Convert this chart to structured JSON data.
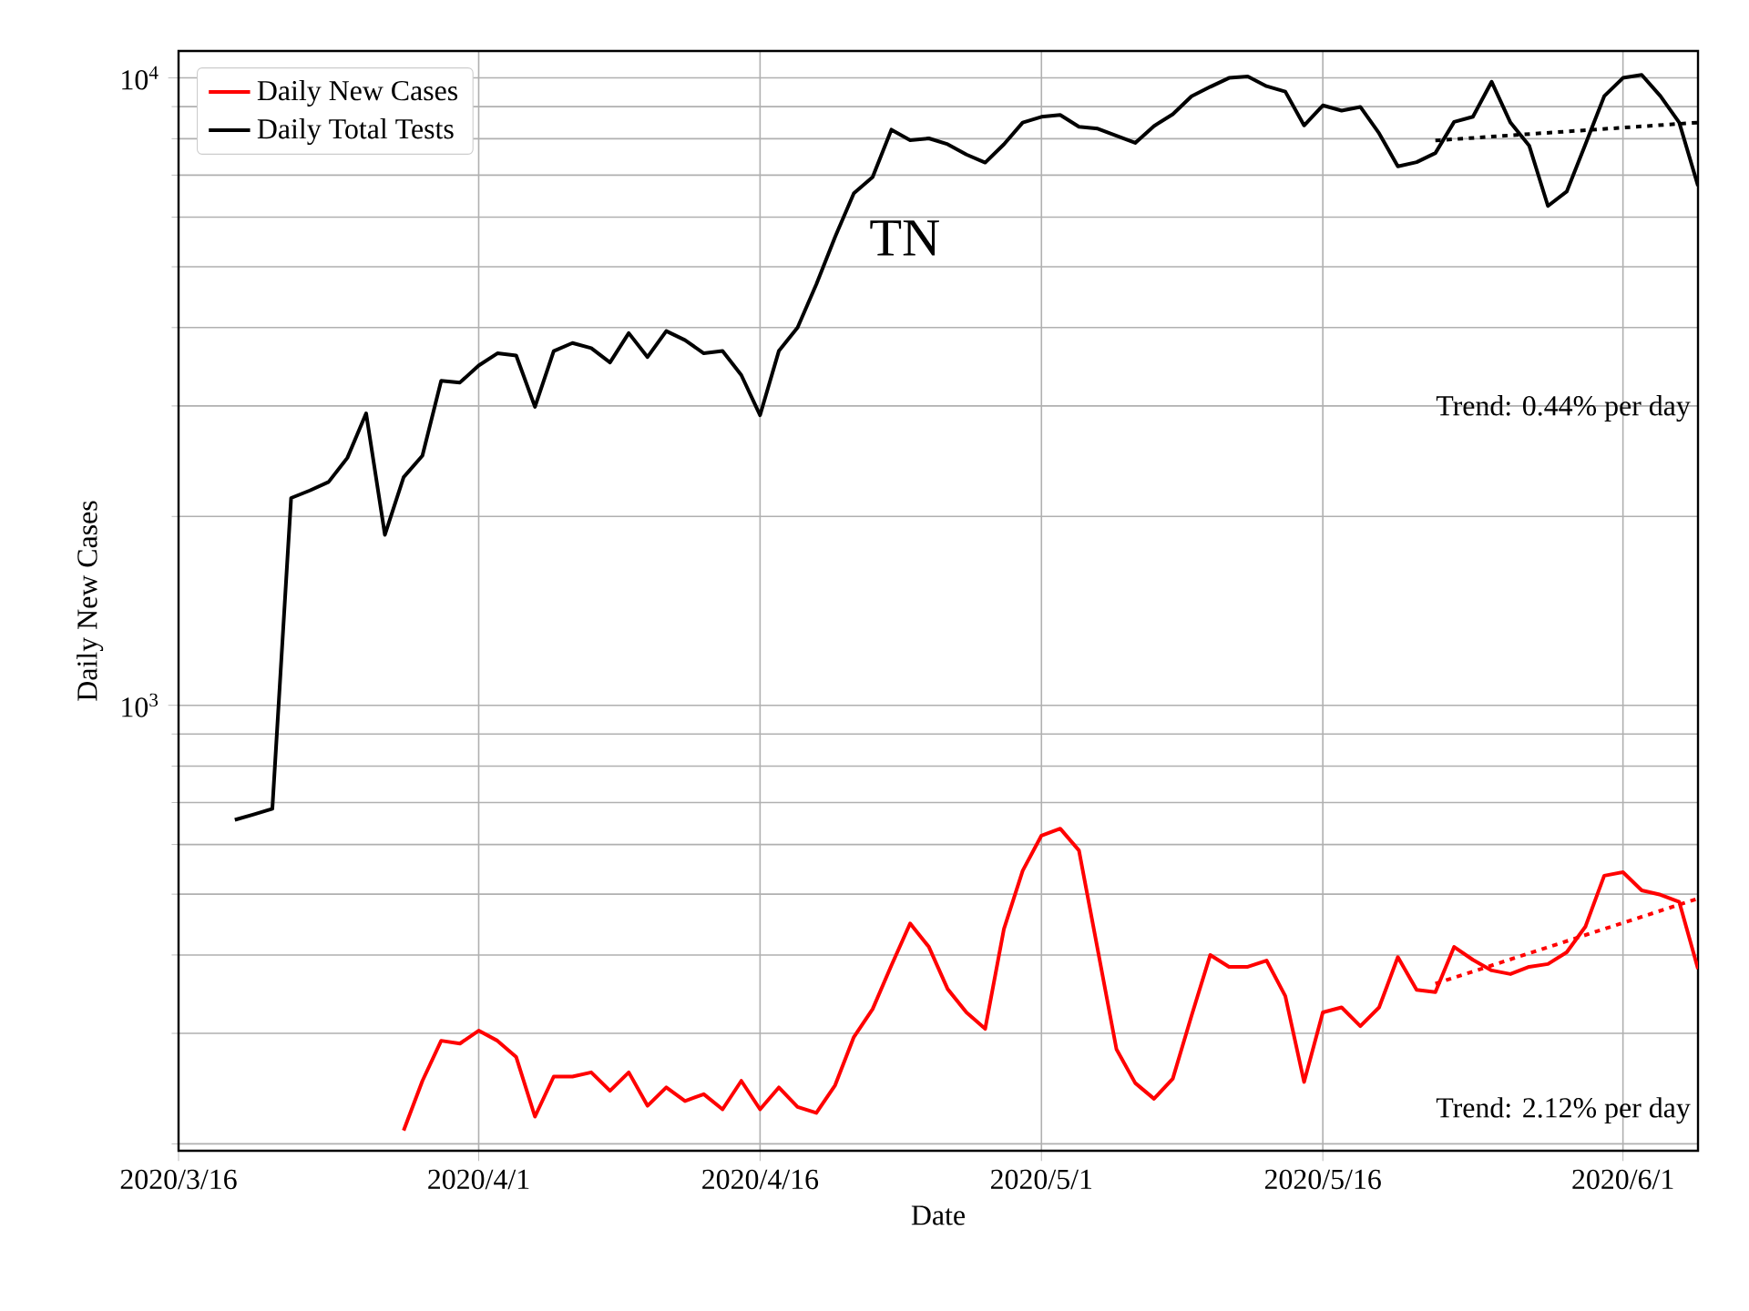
{
  "chart_data": {
    "type": "line",
    "xlabel": "Date",
    "ylabel": "Daily New Cases",
    "annotations": [
      "TN",
      "Trend: 0.44% per day",
      "Trend: 2.12% per day"
    ],
    "x": [
      "2020-03-19",
      "2020-03-20",
      "2020-03-21",
      "2020-03-22",
      "2020-03-23",
      "2020-03-24",
      "2020-03-25",
      "2020-03-26",
      "2020-03-27",
      "2020-03-28",
      "2020-03-29",
      "2020-03-30",
      "2020-03-31",
      "2020-04-01",
      "2020-04-02",
      "2020-04-03",
      "2020-04-04",
      "2020-04-05",
      "2020-04-06",
      "2020-04-07",
      "2020-04-08",
      "2020-04-09",
      "2020-04-10",
      "2020-04-11",
      "2020-04-12",
      "2020-04-13",
      "2020-04-14",
      "2020-04-15",
      "2020-04-16",
      "2020-04-17",
      "2020-04-18",
      "2020-04-19",
      "2020-04-20",
      "2020-04-21",
      "2020-04-22",
      "2020-04-23",
      "2020-04-24",
      "2020-04-25",
      "2020-04-26",
      "2020-04-27",
      "2020-04-28",
      "2020-04-29",
      "2020-04-30",
      "2020-05-01",
      "2020-05-02",
      "2020-05-03",
      "2020-05-04",
      "2020-05-05",
      "2020-05-06",
      "2020-05-07",
      "2020-05-08",
      "2020-05-09",
      "2020-05-10",
      "2020-05-11",
      "2020-05-12",
      "2020-05-13",
      "2020-05-14",
      "2020-05-15",
      "2020-05-16",
      "2020-05-17",
      "2020-05-18",
      "2020-05-19",
      "2020-05-20",
      "2020-05-21",
      "2020-05-22",
      "2020-05-23",
      "2020-05-24",
      "2020-05-25",
      "2020-05-26",
      "2020-05-27",
      "2020-05-28",
      "2020-05-29",
      "2020-05-30",
      "2020-05-31",
      "2020-06-01",
      "2020-06-02",
      "2020-06-03",
      "2020-06-04",
      "2020-06-05"
    ],
    "series": [
      {
        "name": "Daily New Cases",
        "color": "#ff0000",
        "values": [
          null,
          null,
          null,
          null,
          null,
          null,
          null,
          null,
          null,
          210,
          252,
          292,
          289,
          303,
          292,
          275,
          221,
          256,
          256,
          260,
          243,
          260,
          230,
          246,
          234,
          240,
          227,
          252,
          227,
          246,
          229,
          224,
          248,
          296,
          328,
          385,
          449,
          412,
          353,
          324,
          305,
          440,
          545,
          620,
          636,
          587,
          408,
          283,
          250,
          236,
          254,
          320,
          400,
          383,
          383,
          392,
          344,
          251,
          324,
          330,
          308,
          330,
          397,
          352,
          349,
          412,
          393,
          378,
          373,
          383,
          387,
          404,
          444,
          535,
          542,
          507,
          499,
          486,
          380
        ]
      },
      {
        "name": "Daily Total Tests",
        "color": "#000000",
        "values": [
          657,
          670,
          684,
          2140,
          2200,
          2270,
          2480,
          2920,
          1870,
          2310,
          2500,
          3290,
          3270,
          3480,
          3640,
          3610,
          2990,
          3670,
          3780,
          3710,
          3520,
          3920,
          3590,
          3950,
          3820,
          3640,
          3670,
          3360,
          2900,
          3670,
          4000,
          4690,
          5580,
          6550,
          6950,
          8270,
          7960,
          8010,
          7840,
          7550,
          7330,
          7840,
          8490,
          8670,
          8730,
          8360,
          8300,
          8090,
          7880,
          8380,
          8750,
          9350,
          9680,
          10000,
          10050,
          9700,
          9510,
          8400,
          9040,
          8870,
          8990,
          8160,
          7230,
          7340,
          7590,
          8510,
          8670,
          9860,
          8490,
          7800,
          6250,
          6590,
          7840,
          9350,
          10000,
          10110,
          9350,
          8490,
          6730
        ]
      },
      {
        "type": "line",
        "color": "#000000",
        "line_style": "dotted",
        "x": [
          "2020-05-22",
          "2020-06-05"
        ],
        "values": [
          7950,
          8490
        ]
      },
      {
        "type": "line",
        "color": "#ff0000",
        "line_style": "dotted",
        "x": [
          "2020-05-22",
          "2020-06-05"
        ],
        "values": [
          360,
          492
        ]
      }
    ],
    "xlim": [
      "2020-03-16",
      "2020-06-05"
    ],
    "xticks": [
      {
        "value": "2020-03-16",
        "label": "2020/3/16"
      },
      {
        "value": "2020-04-01",
        "label": "2020/4/1"
      },
      {
        "value": "2020-04-16",
        "label": "2020/4/16"
      },
      {
        "value": "2020-05-01",
        "label": "2020/5/1"
      },
      {
        "value": "2020-05-16",
        "label": "2020/5/16"
      },
      {
        "value": "2020-06-01",
        "label": "2020/6/1"
      }
    ],
    "ylim": [
      195,
      11040
    ],
    "yticks": [
      {
        "value": 1000,
        "label": "10$^{3}$"
      },
      {
        "value": 10000,
        "label": "10$^{4}$"
      }
    ],
    "log": "y",
    "grid": true,
    "legend": "top left"
  }
}
